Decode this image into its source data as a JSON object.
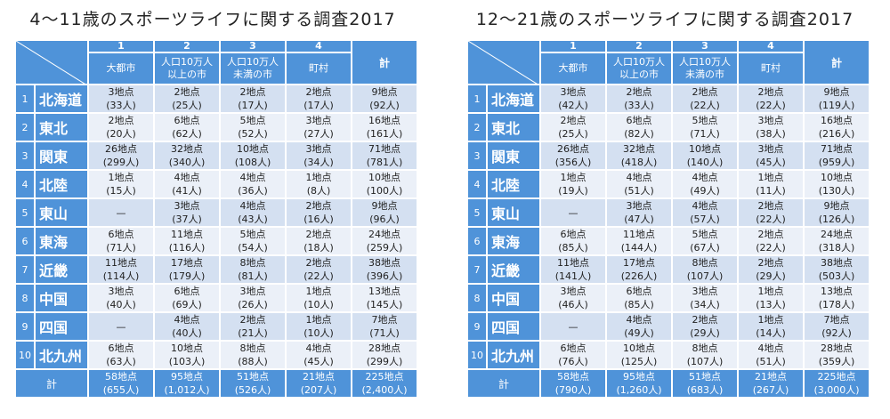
{
  "headers": {
    "nums": [
      "1",
      "2",
      "3",
      "4"
    ],
    "cats": [
      [
        "大都市",
        ""
      ],
      [
        "人口10万人",
        "以上の市"
      ],
      [
        "人口10万人",
        "未満の市"
      ],
      [
        "町村",
        ""
      ]
    ],
    "total": "計"
  },
  "regions": [
    {
      "num": "1",
      "name": "北海道"
    },
    {
      "num": "2",
      "name": "東北"
    },
    {
      "num": "3",
      "name": "関東"
    },
    {
      "num": "4",
      "name": "北陸"
    },
    {
      "num": "5",
      "name": "東山"
    },
    {
      "num": "6",
      "name": "東海"
    },
    {
      "num": "7",
      "name": "近畿"
    },
    {
      "num": "8",
      "name": "中国"
    },
    {
      "num": "9",
      "name": "四国"
    },
    {
      "num": "10",
      "name": "北九州"
    }
  ],
  "footer_label": "計",
  "left": {
    "title": "4～11歳のスポーツライフに関する調査2017",
    "rows": [
      [
        [
          "3地点",
          "(33人)"
        ],
        [
          "2地点",
          "(25人)"
        ],
        [
          "2地点",
          "(17人)"
        ],
        [
          "2地点",
          "(17人)"
        ],
        [
          "9地点",
          "(92人)"
        ]
      ],
      [
        [
          "2地点",
          "(20人)"
        ],
        [
          "6地点",
          "(62人)"
        ],
        [
          "5地点",
          "(52人)"
        ],
        [
          "3地点",
          "(27人)"
        ],
        [
          "16地点",
          "(161人)"
        ]
      ],
      [
        [
          "26地点",
          "(299人)"
        ],
        [
          "32地点",
          "(340人)"
        ],
        [
          "10地点",
          "(108人)"
        ],
        [
          "3地点",
          "(34人)"
        ],
        [
          "71地点",
          "(781人)"
        ]
      ],
      [
        [
          "1地点",
          "(15人)"
        ],
        [
          "4地点",
          "(41人)"
        ],
        [
          "4地点",
          "(36人)"
        ],
        [
          "1地点",
          "(8人)"
        ],
        [
          "10地点",
          "(100人)"
        ]
      ],
      [
        [
          "—",
          ""
        ],
        [
          "3地点",
          "(37人)"
        ],
        [
          "4地点",
          "(43人)"
        ],
        [
          "2地点",
          "(16人)"
        ],
        [
          "9地点",
          "(96人)"
        ]
      ],
      [
        [
          "6地点",
          "(71人)"
        ],
        [
          "11地点",
          "(116人)"
        ],
        [
          "5地点",
          "(54人)"
        ],
        [
          "2地点",
          "(18人)"
        ],
        [
          "24地点",
          "(259人)"
        ]
      ],
      [
        [
          "11地点",
          "(114人)"
        ],
        [
          "17地点",
          "(179人)"
        ],
        [
          "8地点",
          "(81人)"
        ],
        [
          "2地点",
          "(22人)"
        ],
        [
          "38地点",
          "(396人)"
        ]
      ],
      [
        [
          "3地点",
          "(40人)"
        ],
        [
          "6地点",
          "(69人)"
        ],
        [
          "3地点",
          "(26人)"
        ],
        [
          "1地点",
          "(10人)"
        ],
        [
          "13地点",
          "(145人)"
        ]
      ],
      [
        [
          "—",
          ""
        ],
        [
          "4地点",
          "(40人)"
        ],
        [
          "2地点",
          "(21人)"
        ],
        [
          "1地点",
          "(10人)"
        ],
        [
          "7地点",
          "(71人)"
        ]
      ],
      [
        [
          "6地点",
          "(63人)"
        ],
        [
          "10地点",
          "(103人)"
        ],
        [
          "8地点",
          "(88人)"
        ],
        [
          "4地点",
          "(45人)"
        ],
        [
          "28地点",
          "(299人)"
        ]
      ]
    ],
    "totals": [
      [
        "58地点",
        "(655人)"
      ],
      [
        "95地点",
        "(1,012人)"
      ],
      [
        "51地点",
        "(526人)"
      ],
      [
        "21地点",
        "(207人)"
      ],
      [
        "225地点",
        "(2,400人)"
      ]
    ]
  },
  "right": {
    "title": "12～21歳のスポーツライフに関する調査2017",
    "rows": [
      [
        [
          "3地点",
          "(42人)"
        ],
        [
          "2地点",
          "(33人)"
        ],
        [
          "2地点",
          "(22人)"
        ],
        [
          "2地点",
          "(22人)"
        ],
        [
          "9地点",
          "(119人)"
        ]
      ],
      [
        [
          "2地点",
          "(25人)"
        ],
        [
          "6地点",
          "(82人)"
        ],
        [
          "5地点",
          "(71人)"
        ],
        [
          "3地点",
          "(38人)"
        ],
        [
          "16地点",
          "(216人)"
        ]
      ],
      [
        [
          "26地点",
          "(356人)"
        ],
        [
          "32地点",
          "(418人)"
        ],
        [
          "10地点",
          "(140人)"
        ],
        [
          "3地点",
          "(45人)"
        ],
        [
          "71地点",
          "(959人)"
        ]
      ],
      [
        [
          "1地点",
          "(19人)"
        ],
        [
          "4地点",
          "(51人)"
        ],
        [
          "4地点",
          "(49人)"
        ],
        [
          "1地点",
          "(11人)"
        ],
        [
          "10地点",
          "(130人)"
        ]
      ],
      [
        [
          "—",
          ""
        ],
        [
          "3地点",
          "(47人)"
        ],
        [
          "4地点",
          "(57人)"
        ],
        [
          "2地点",
          "(22人)"
        ],
        [
          "9地点",
          "(126人)"
        ]
      ],
      [
        [
          "6地点",
          "(85人)"
        ],
        [
          "11地点",
          "(144人)"
        ],
        [
          "5地点",
          "(67人)"
        ],
        [
          "2地点",
          "(22人)"
        ],
        [
          "24地点",
          "(318人)"
        ]
      ],
      [
        [
          "11地点",
          "(141人)"
        ],
        [
          "17地点",
          "(226人)"
        ],
        [
          "8地点",
          "(107人)"
        ],
        [
          "2地点",
          "(29人)"
        ],
        [
          "38地点",
          "(503人)"
        ]
      ],
      [
        [
          "3地点",
          "(46人)"
        ],
        [
          "6地点",
          "(85人)"
        ],
        [
          "3地点",
          "(34人)"
        ],
        [
          "1地点",
          "(13人)"
        ],
        [
          "13地点",
          "(178人)"
        ]
      ],
      [
        [
          "—",
          ""
        ],
        [
          "4地点",
          "(49人)"
        ],
        [
          "2地点",
          "(29人)"
        ],
        [
          "1地点",
          "(14人)"
        ],
        [
          "7地点",
          "(92人)"
        ]
      ],
      [
        [
          "6地点",
          "(76人)"
        ],
        [
          "10地点",
          "(125人)"
        ],
        [
          "8地点",
          "(107人)"
        ],
        [
          "4地点",
          "(51人)"
        ],
        [
          "28地点",
          "(359人)"
        ]
      ]
    ],
    "totals": [
      [
        "58地点",
        "(790人)"
      ],
      [
        "95地点",
        "(1,260人)"
      ],
      [
        "51地点",
        "(683人)"
      ],
      [
        "21地点",
        "(267人)"
      ],
      [
        "225地点",
        "(3,000人)"
      ]
    ]
  }
}
